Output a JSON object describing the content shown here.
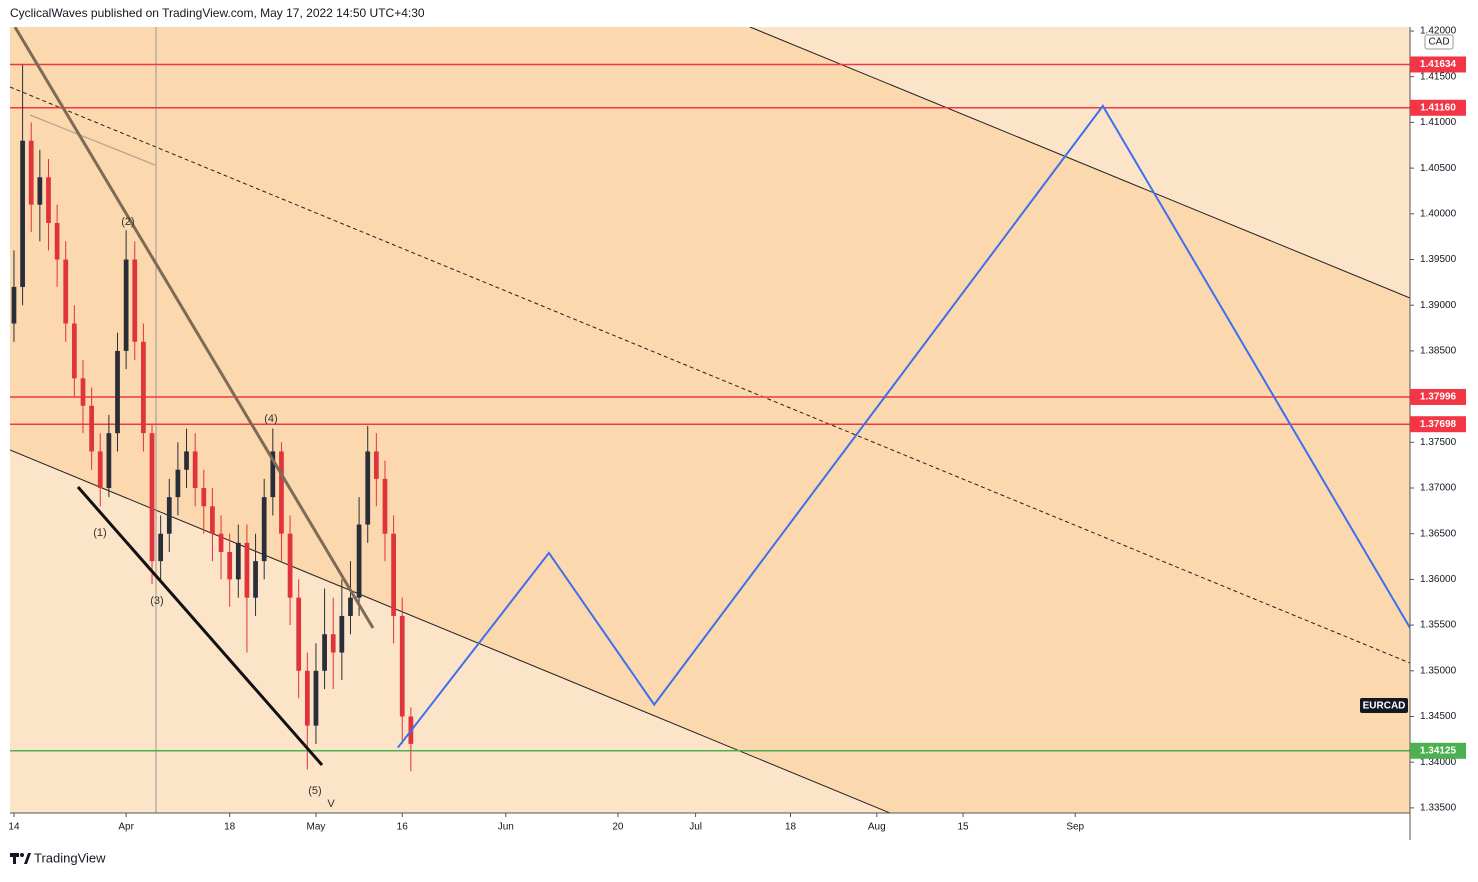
{
  "header": {
    "title": "CyclicalWaves published on TradingView.com, May 17, 2022 14:50 UTC+4:30"
  },
  "footer": {
    "brand": "TradingView"
  },
  "chart_data": {
    "type": "candlestick",
    "symbol": "EURCAD",
    "currency": "CAD",
    "up_color": "#2a2e39",
    "down_color": "#e0343c",
    "x": [
      0,
      1,
      2,
      3,
      4,
      5,
      6,
      7,
      8,
      9,
      10,
      11,
      12,
      13,
      14,
      15,
      16,
      17,
      18,
      19,
      20,
      21,
      22,
      23,
      24,
      25,
      26,
      27,
      28,
      29,
      30,
      31,
      32,
      33,
      34,
      35,
      36,
      37,
      38,
      39,
      40,
      41,
      42,
      43,
      44,
      45,
      46
    ],
    "open": [
      1.388,
      1.392,
      1.408,
      1.401,
      1.404,
      1.399,
      1.395,
      1.388,
      1.382,
      1.379,
      1.374,
      1.37,
      1.376,
      1.385,
      1.395,
      1.386,
      1.376,
      1.362,
      1.365,
      1.369,
      1.372,
      1.374,
      1.37,
      1.368,
      1.365,
      1.363,
      1.36,
      1.364,
      1.358,
      1.362,
      1.369,
      1.374,
      1.365,
      1.358,
      1.35,
      1.344,
      1.35,
      1.354,
      1.352,
      1.356,
      1.358,
      1.366,
      1.374,
      1.371,
      1.365,
      1.356,
      1.345
    ],
    "high": [
      1.396,
      1.4163,
      1.41,
      1.407,
      1.406,
      1.401,
      1.397,
      1.39,
      1.384,
      1.381,
      1.376,
      1.378,
      1.387,
      1.3982,
      1.397,
      1.388,
      1.377,
      1.367,
      1.371,
      1.375,
      1.3765,
      1.376,
      1.372,
      1.37,
      1.367,
      1.365,
      1.366,
      1.366,
      1.365,
      1.371,
      1.3765,
      1.375,
      1.367,
      1.36,
      1.352,
      1.353,
      1.359,
      1.358,
      1.36,
      1.362,
      1.369,
      1.3768,
      1.376,
      1.373,
      1.367,
      1.358,
      1.346
    ],
    "low": [
      1.386,
      1.39,
      1.398,
      1.397,
      1.396,
      1.392,
      1.386,
      1.38,
      1.376,
      1.372,
      1.368,
      1.369,
      1.374,
      1.383,
      1.384,
      1.374,
      1.3595,
      1.36,
      1.363,
      1.367,
      1.37,
      1.368,
      1.365,
      1.362,
      1.36,
      1.357,
      1.358,
      1.352,
      1.356,
      1.36,
      1.367,
      1.362,
      1.355,
      1.347,
      1.3392,
      1.342,
      1.348,
      1.348,
      1.349,
      1.354,
      1.356,
      1.364,
      1.368,
      1.362,
      1.353,
      1.342,
      1.339
    ],
    "close": [
      1.392,
      1.408,
      1.401,
      1.404,
      1.399,
      1.395,
      1.388,
      1.382,
      1.379,
      1.374,
      1.37,
      1.376,
      1.385,
      1.395,
      1.386,
      1.376,
      1.362,
      1.365,
      1.369,
      1.372,
      1.374,
      1.37,
      1.368,
      1.365,
      1.363,
      1.36,
      1.364,
      1.358,
      1.362,
      1.369,
      1.374,
      1.365,
      1.358,
      1.35,
      1.344,
      1.35,
      1.354,
      1.352,
      1.356,
      1.358,
      1.366,
      1.374,
      1.371,
      1.365,
      1.356,
      1.345,
      1.342
    ],
    "projection": {
      "color": "#3d6ff0",
      "x": [
        44.5,
        62,
        74.2,
        126.2,
        161.8
      ],
      "values": [
        1.3416,
        1.3629,
        1.3463,
        1.4118,
        1.3547
      ]
    },
    "levels": {
      "values": [
        1.41634,
        1.4116,
        1.37996,
        1.37698,
        1.34125
      ],
      "value_labels": [
        "1.41634",
        "1.41160",
        "1.37996",
        "1.37698",
        "1.34125"
      ],
      "colors": [
        "#f23645",
        "#f23645",
        "#f23645",
        "#f23645",
        "#4caf50"
      ]
    },
    "wave_labels": [
      "(1)",
      "(2)",
      "(3)",
      "(4)",
      "(5)",
      "V"
    ],
    "xlim": [
      -0.46,
      161.8
    ],
    "xticks": [
      {
        "value": 0,
        "label": "14"
      },
      {
        "value": 13,
        "label": "Apr"
      },
      {
        "value": 25,
        "label": "18"
      },
      {
        "value": 35,
        "label": "May"
      },
      {
        "value": 45,
        "label": "16"
      },
      {
        "value": 57,
        "label": "Jun"
      },
      {
        "value": 70,
        "label": "20"
      },
      {
        "value": 79,
        "label": "Jul"
      },
      {
        "value": 90,
        "label": "18"
      },
      {
        "value": 100,
        "label": "Aug"
      },
      {
        "value": 110,
        "label": "15"
      },
      {
        "value": 123,
        "label": "Sep"
      }
    ],
    "ylim": [
      1.33444,
      1.42044
    ],
    "yticks": [
      {
        "value": 1.335,
        "label": "1.33500"
      },
      {
        "value": 1.34,
        "label": "1.34000"
      },
      {
        "value": 1.345,
        "label": "1.34500"
      },
      {
        "value": 1.35,
        "label": "1.35000"
      },
      {
        "value": 1.355,
        "label": "1.35500"
      },
      {
        "value": 1.36,
        "label": "1.36000"
      },
      {
        "value": 1.365,
        "label": "1.36500"
      },
      {
        "value": 1.37,
        "label": "1.37000"
      },
      {
        "value": 1.375,
        "label": "1.37500"
      },
      {
        "value": 1.38,
        "label": "1.38000"
      },
      {
        "value": 1.385,
        "label": "1.38500"
      },
      {
        "value": 1.39,
        "label": "1.39000"
      },
      {
        "value": 1.395,
        "label": "1.39500"
      },
      {
        "value": 1.4,
        "label": "1.40000"
      },
      {
        "value": 1.405,
        "label": "1.40500"
      },
      {
        "value": 1.41,
        "label": "1.41000"
      },
      {
        "value": 1.415,
        "label": "1.41500"
      },
      {
        "value": 1.42,
        "label": "1.42000"
      }
    ]
  }
}
